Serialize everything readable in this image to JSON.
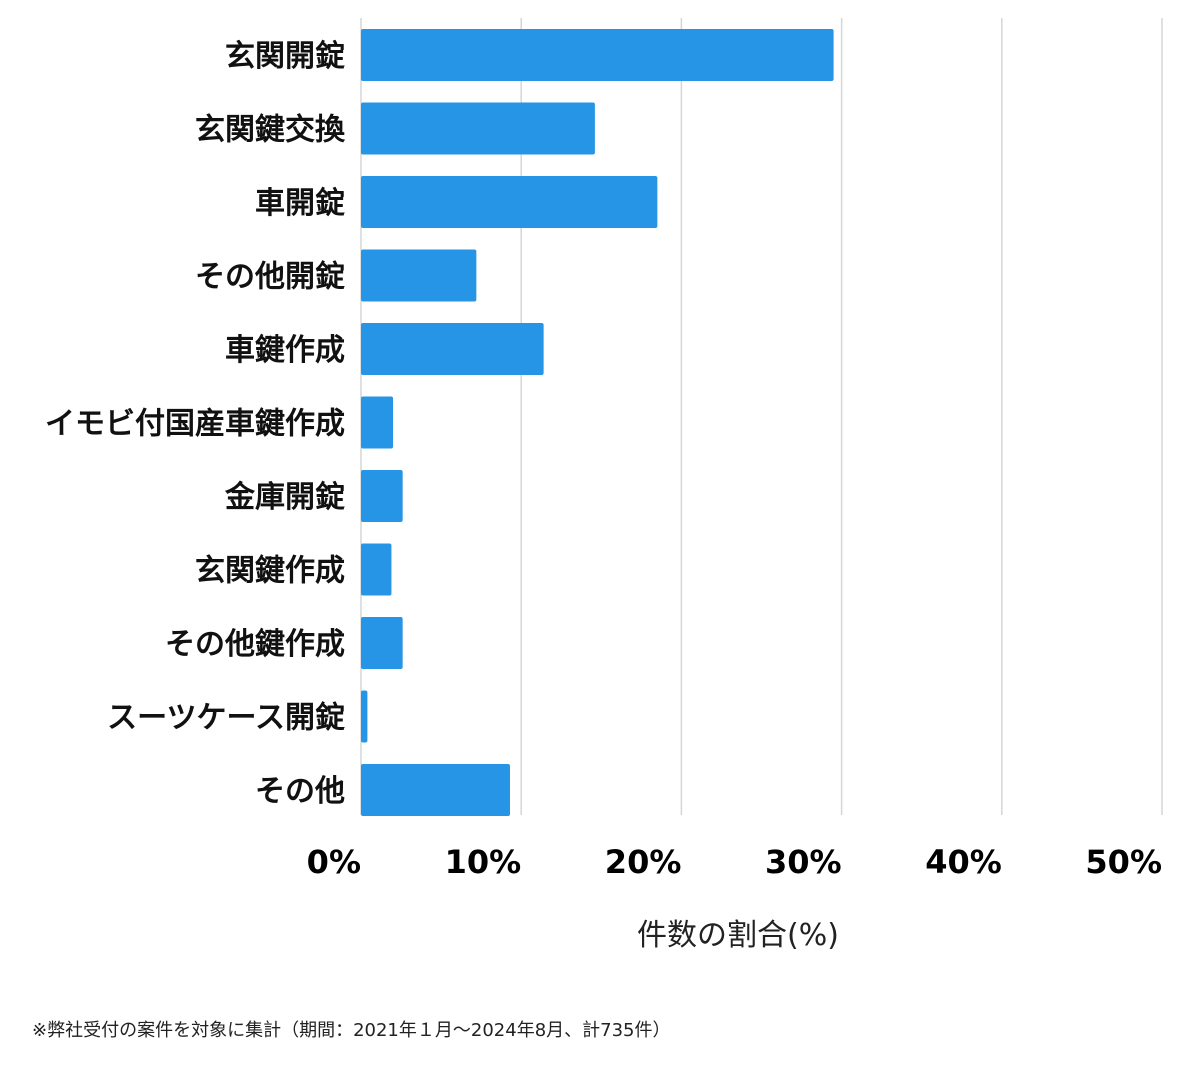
{
  "chart_data": {
    "type": "bar",
    "orientation": "horizontal",
    "categories": [
      "玄関開錠",
      "玄関鍵交換",
      "車開錠",
      "その他開錠",
      "車鍵作成",
      "イモビ付国産車鍵作成",
      "金庫開錠",
      "玄関鍵作成",
      "その他鍵作成",
      "スーツケース開錠",
      "その他"
    ],
    "values": [
      29.5,
      14.6,
      18.5,
      7.2,
      11.4,
      2.0,
      2.6,
      1.9,
      2.6,
      0.4,
      9.3
    ],
    "xlabel": "件数の割合(%)",
    "xlim": [
      0,
      50
    ],
    "xticks": [
      0,
      10,
      20,
      30,
      40,
      50
    ],
    "xtick_labels": [
      "0%",
      "10%",
      "20%",
      "30%",
      "40%",
      "50%"
    ],
    "grid": true,
    "bar_color": "#2795e5"
  },
  "footnote": "※弊社受付の案件を対象に集計（期間：2021年１月〜2024年8月、計735件）"
}
